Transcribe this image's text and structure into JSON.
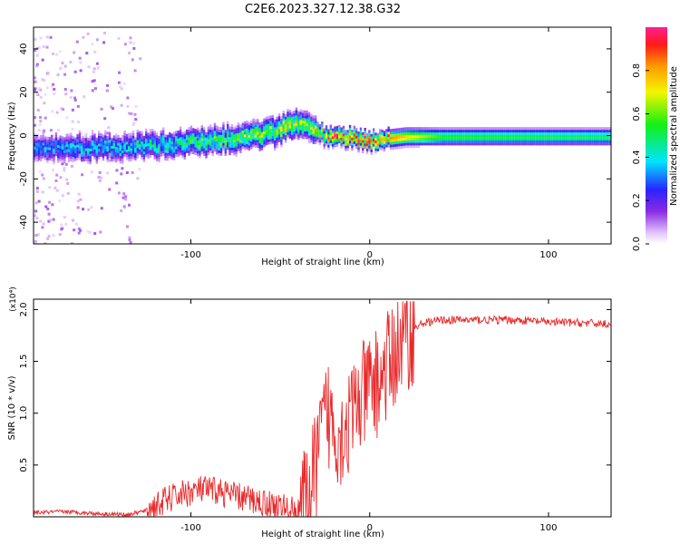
{
  "title": "C2E6.2023.327.12.38.G32",
  "chart_data": [
    {
      "type": "heatmap",
      "xlabel": "Height of straight line (km)",
      "ylabel": "Frequency (Hz)",
      "xlim": [
        -188,
        135
      ],
      "ylim": [
        -50,
        50
      ],
      "xticks": [
        -100,
        0,
        100
      ],
      "yticks": [
        -40,
        -20,
        0,
        20,
        40
      ],
      "colorbar": {
        "label": "Normalized spectral amplitude",
        "range": [
          0,
          1
        ],
        "ticks": [
          "0.0",
          "0.2",
          "0.4",
          "0.6",
          "0.8"
        ],
        "colormap": "rainbow (white-purple-blue-cyan-green-yellow-orange-red-magenta)"
      },
      "band_center_hz": [
        [
          -188,
          -5
        ],
        [
          -150,
          -5
        ],
        [
          -120,
          -4
        ],
        [
          -90,
          -2
        ],
        [
          -70,
          0
        ],
        [
          -55,
          2
        ],
        [
          -45,
          6
        ],
        [
          -38,
          6
        ],
        [
          -30,
          3
        ],
        [
          -25,
          0
        ],
        [
          -20,
          0
        ],
        [
          -10,
          0
        ],
        [
          0,
          -2
        ],
        [
          10,
          -1
        ],
        [
          20,
          0
        ],
        [
          135,
          0
        ]
      ],
      "band_peak_amplitude": [
        [
          -188,
          0.35
        ],
        [
          -150,
          0.4
        ],
        [
          -120,
          0.45
        ],
        [
          -90,
          0.55
        ],
        [
          -70,
          0.6
        ],
        [
          -45,
          0.7
        ],
        [
          -35,
          0.6
        ],
        [
          -20,
          0.95
        ],
        [
          -5,
          0.95
        ],
        [
          5,
          0.9
        ],
        [
          15,
          0.8
        ],
        [
          40,
          0.55
        ],
        [
          135,
          0.5
        ]
      ]
    },
    {
      "type": "line",
      "xlabel": "Height of straight line (km)",
      "ylabel": "SNR (10 * v/v)",
      "y_multiplier": "(x10⁴)",
      "xlim": [
        -188,
        135
      ],
      "ylim": [
        0,
        2.1
      ],
      "xticks": [
        -100,
        0,
        100
      ],
      "yticks": [
        "0.5",
        "1.0",
        "1.5",
        "2.0"
      ],
      "series": [
        {
          "color": "#e8292b",
          "values": [
            [
              -188,
              0.04
            ],
            [
              -170,
              0.05
            ],
            [
              -150,
              0.03
            ],
            [
              -135,
              0.02
            ],
            [
              -125,
              0.06
            ],
            [
              -115,
              0.15
            ],
            [
              -105,
              0.22
            ],
            [
              -95,
              0.26
            ],
            [
              -85,
              0.25
            ],
            [
              -75,
              0.2
            ],
            [
              -65,
              0.16
            ],
            [
              -55,
              0.12
            ],
            [
              -45,
              0.07
            ],
            [
              -38,
              0.05
            ],
            [
              -33,
              0.25
            ],
            [
              -28,
              0.7
            ],
            [
              -24,
              1.0
            ],
            [
              -20,
              0.9
            ],
            [
              -16,
              0.8
            ],
            [
              -12,
              0.9
            ],
            [
              -8,
              1.05
            ],
            [
              -4,
              1.15
            ],
            [
              0,
              1.25
            ],
            [
              5,
              1.3
            ],
            [
              10,
              1.45
            ],
            [
              15,
              1.6
            ],
            [
              20,
              1.72
            ],
            [
              25,
              1.82
            ],
            [
              30,
              1.87
            ],
            [
              40,
              1.9
            ],
            [
              60,
              1.9
            ],
            [
              80,
              1.9
            ],
            [
              100,
              1.88
            ],
            [
              120,
              1.87
            ],
            [
              135,
              1.86
            ]
          ]
        }
      ]
    }
  ]
}
